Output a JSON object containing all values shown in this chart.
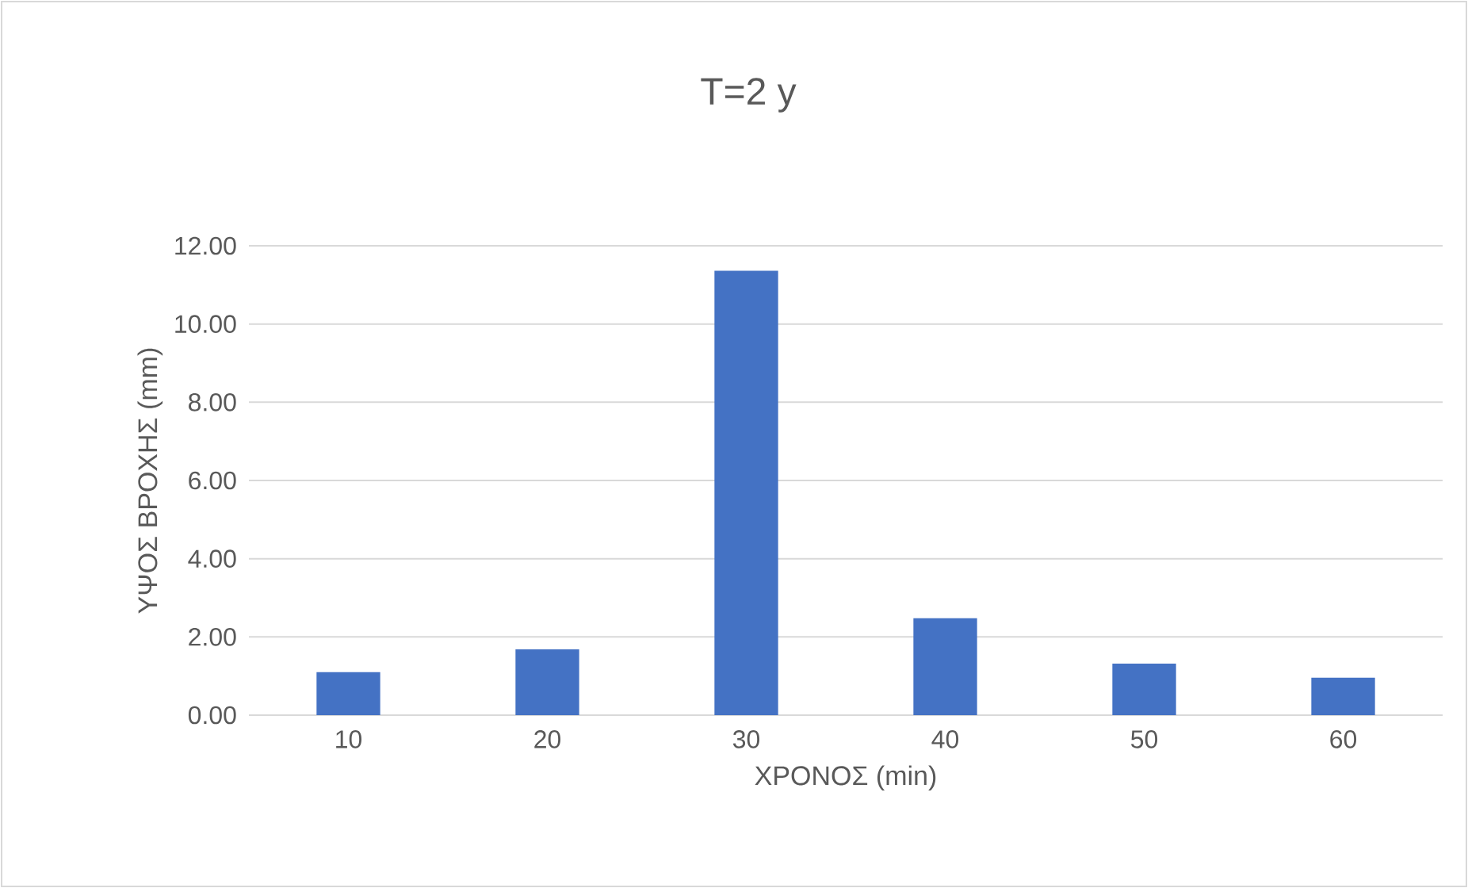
{
  "chart_data": {
    "type": "bar",
    "title": "T=2 y",
    "xlabel": "ΧΡΟΝΟΣ (min)",
    "ylabel": "ΥΨΟΣ ΒΡΟΧΗΣ (mm)",
    "categories": [
      "10",
      "20",
      "30",
      "40",
      "50",
      "60"
    ],
    "values": [
      1.1,
      1.68,
      11.36,
      2.48,
      1.32,
      0.96
    ],
    "color": "#4472c4",
    "ylim": [
      0,
      12
    ],
    "yticks": [
      {
        "value": 0,
        "label": "0.00"
      },
      {
        "value": 2,
        "label": "2.00"
      },
      {
        "value": 4,
        "label": "4.00"
      },
      {
        "value": 6,
        "label": "6.00"
      },
      {
        "value": 8,
        "label": "8.00"
      },
      {
        "value": 10,
        "label": "10.00"
      },
      {
        "value": 12,
        "label": "12.00"
      }
    ],
    "grid": "y"
  }
}
